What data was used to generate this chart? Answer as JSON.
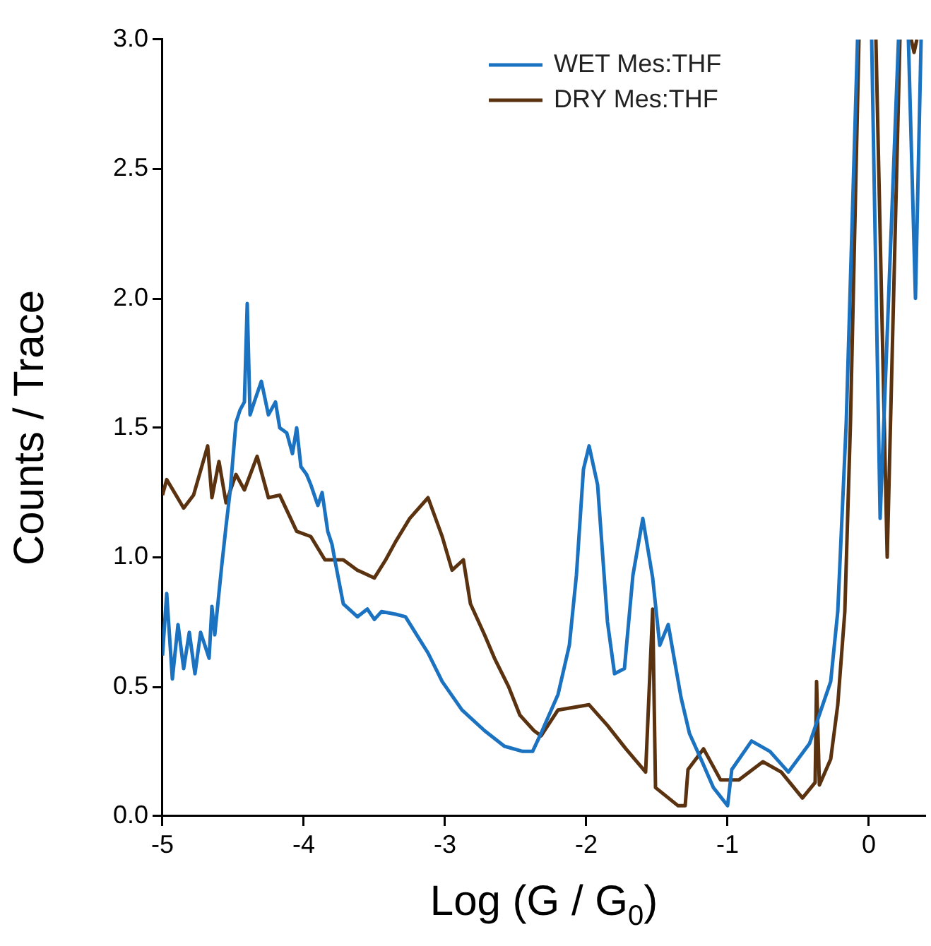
{
  "chart_data": {
    "type": "line",
    "xlabel": "Log (G / G$_{0}$)",
    "ylabel": "Counts / Trace",
    "xlim": [
      -5,
      0.4
    ],
    "xticks": [
      -5,
      -4,
      -3,
      -2,
      -1,
      0
    ],
    "ylim": [
      0,
      3
    ],
    "yticks": [
      {
        "value": 0,
        "label": "0.0"
      },
      {
        "value": 0.5,
        "label": "0.5"
      },
      {
        "value": 1,
        "label": "1.0"
      },
      {
        "value": 1.5,
        "label": "1.5"
      },
      {
        "value": 2,
        "label": "2.0"
      },
      {
        "value": 2.5,
        "label": "2.5"
      },
      {
        "value": 3,
        "label": "3.0"
      }
    ],
    "grid": false,
    "legend": "top right",
    "marker": "none",
    "line_style": "solid",
    "series": [
      {
        "name": "WET Mes:THF",
        "color": "#1a72c0",
        "x": [
          -5,
          -4.97,
          -4.93,
          -4.89,
          -4.85,
          -4.81,
          -4.77,
          -4.73,
          -4.67,
          -4.65,
          -4.63,
          -4.58,
          -4.55,
          -4.52,
          -4.48,
          -4.45,
          -4.42,
          -4.4,
          -4.38,
          -4.35,
          -4.3,
          -4.25,
          -4.2,
          -4.17,
          -4.12,
          -4.08,
          -4.05,
          -4.02,
          -3.98,
          -3.95,
          -3.9,
          -3.87,
          -3.83,
          -3.8,
          -3.78,
          -3.72,
          -3.62,
          -3.55,
          -3.5,
          -3.45,
          -3.35,
          -3.28,
          -3.2,
          -3.12,
          -3.02,
          -2.88,
          -2.72,
          -2.58,
          -2.45,
          -2.38,
          -2.32,
          -2.2,
          -2.12,
          -2.07,
          -2.02,
          -1.98,
          -1.92,
          -1.85,
          -1.8,
          -1.73,
          -1.67,
          -1.6,
          -1.53,
          -1.48,
          -1.42,
          -1.33,
          -1.27,
          -1.18,
          -1.1,
          -1,
          -0.97,
          -0.83,
          -0.7,
          -0.57,
          -0.42,
          -0.27,
          -0.22,
          -0.16,
          -0.08,
          -0.05,
          0.02,
          0.08,
          0.21,
          0.24,
          0.28,
          0.33,
          0.37
        ],
        "values": [
          0.62,
          0.86,
          0.53,
          0.74,
          0.57,
          0.71,
          0.55,
          0.71,
          0.61,
          0.81,
          0.7,
          0.97,
          1.12,
          1.26,
          1.52,
          1.57,
          1.6,
          1.98,
          1.55,
          1.6,
          1.68,
          1.55,
          1.6,
          1.5,
          1.48,
          1.4,
          1.5,
          1.35,
          1.32,
          1.28,
          1.2,
          1.25,
          1.1,
          1.05,
          0.99,
          0.82,
          0.77,
          0.8,
          0.76,
          0.79,
          0.78,
          0.77,
          0.7,
          0.63,
          0.52,
          0.41,
          0.33,
          0.27,
          0.25,
          0.25,
          0.32,
          0.47,
          0.66,
          0.93,
          1.34,
          1.43,
          1.28,
          0.75,
          0.55,
          0.57,
          0.93,
          1.15,
          0.92,
          0.66,
          0.74,
          0.46,
          0.32,
          0.21,
          0.11,
          0.04,
          0.18,
          0.29,
          0.25,
          0.17,
          0.28,
          0.52,
          0.79,
          1.52,
          3,
          null,
          3,
          1.15,
          3,
          null,
          3,
          2,
          3
        ]
      },
      {
        "name": "DRY Mes:THF",
        "color": "#5a3210",
        "x": [
          -5,
          -4.97,
          -4.85,
          -4.78,
          -4.68,
          -4.65,
          -4.6,
          -4.55,
          -4.48,
          -4.42,
          -4.33,
          -4.25,
          -4.17,
          -4.05,
          -3.95,
          -3.85,
          -3.72,
          -3.62,
          -3.5,
          -3.42,
          -3.35,
          -3.25,
          -3.12,
          -3.02,
          -2.95,
          -2.87,
          -2.82,
          -2.72,
          -2.65,
          -2.55,
          -2.47,
          -2.37,
          -2.32,
          -2.2,
          -1.98,
          -1.85,
          -1.72,
          -1.58,
          -1.53,
          -1.51,
          -1.35,
          -1.3,
          -1.28,
          -1.17,
          -1.05,
          -0.92,
          -0.75,
          -0.62,
          -0.47,
          -0.38,
          -0.37,
          -0.35,
          -0.27,
          -0.22,
          -0.17,
          -0.13,
          -0.07,
          -0.04,
          0.05,
          0.13,
          0.22,
          0.26,
          0.3,
          0.32,
          0.34
        ],
        "values": [
          1.24,
          1.3,
          1.19,
          1.24,
          1.43,
          1.23,
          1.37,
          1.21,
          1.32,
          1.26,
          1.39,
          1.23,
          1.24,
          1.1,
          1.08,
          0.99,
          0.99,
          0.95,
          0.92,
          0.99,
          1.06,
          1.15,
          1.23,
          1.08,
          0.95,
          0.99,
          0.82,
          0.7,
          0.61,
          0.5,
          0.39,
          0.33,
          0.31,
          0.41,
          0.43,
          0.35,
          0.26,
          0.17,
          0.8,
          0.11,
          0.04,
          0.04,
          0.18,
          0.26,
          0.14,
          0.14,
          0.21,
          0.17,
          0.07,
          0.13,
          0.52,
          0.12,
          0.22,
          0.43,
          0.79,
          1.52,
          3,
          null,
          3,
          1,
          3,
          null,
          3,
          2.95,
          3
        ]
      }
    ]
  }
}
